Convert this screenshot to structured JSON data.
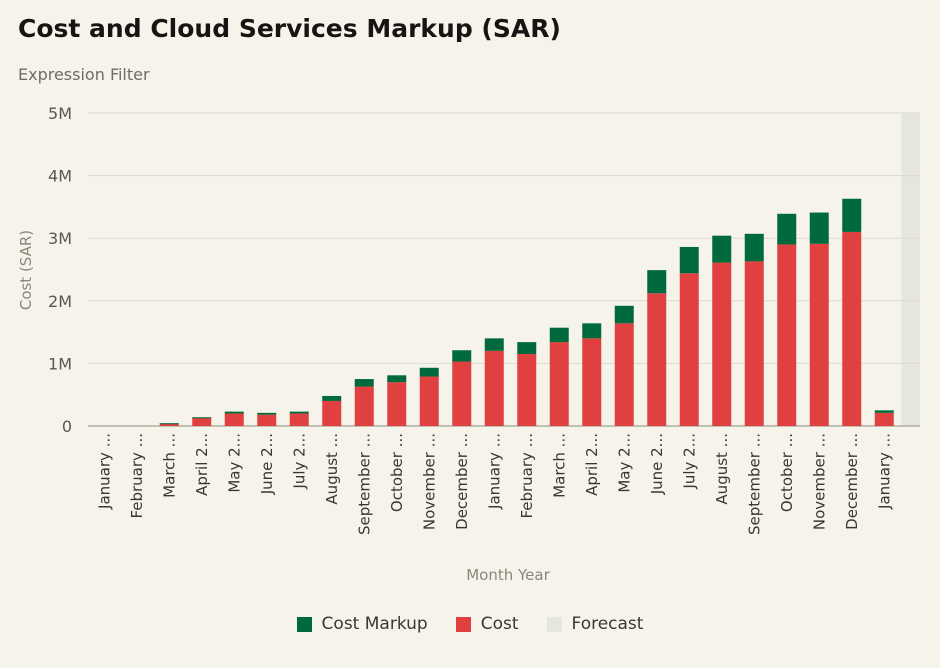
{
  "header": {
    "title": "Cost and Cloud Services Markup (SAR)",
    "subtitle": "Expression Filter"
  },
  "colors": {
    "cost": "#e04040",
    "markup": "#006a3c",
    "forecast": "#e6e6e0",
    "grid": "#dcdad0",
    "axis_text": "#5a5650"
  },
  "legend": {
    "markup_label": "Cost Markup",
    "cost_label": "Cost",
    "forecast_label": "Forecast"
  },
  "chart_data": {
    "type": "bar",
    "stacked": true,
    "title": "Cost and Cloud Services Markup (SAR)",
    "xlabel": "Month Year",
    "ylabel": "Cost (SAR)",
    "ylim": [
      0,
      5000000
    ],
    "yticks": [
      0,
      1000000,
      2000000,
      3000000,
      4000000,
      5000000
    ],
    "ytick_labels": [
      "0",
      "1M",
      "2M",
      "3M",
      "4M",
      "5M"
    ],
    "categories": [
      "January ...",
      "February ...",
      "March ...",
      "April 2...",
      "May 2...",
      "June 2...",
      "July 2...",
      "August ...",
      "September ...",
      "October ...",
      "November ...",
      "December ...",
      "January ...",
      "February ...",
      "March ...",
      "April 2...",
      "May 2...",
      "June 2...",
      "July 2...",
      "August ...",
      "September ...",
      "October ...",
      "November ...",
      "December ...",
      "January ..."
    ],
    "series": [
      {
        "name": "Cost",
        "values": [
          0,
          0,
          40000,
          130000,
          200000,
          180000,
          200000,
          400000,
          630000,
          700000,
          790000,
          1030000,
          1200000,
          1150000,
          1340000,
          1400000,
          1640000,
          2120000,
          2440000,
          2610000,
          2630000,
          2900000,
          2910000,
          3100000,
          210000
        ]
      },
      {
        "name": "Cost Markup",
        "values": [
          0,
          0,
          5000,
          10000,
          30000,
          30000,
          30000,
          80000,
          120000,
          110000,
          140000,
          180000,
          200000,
          190000,
          230000,
          240000,
          280000,
          370000,
          420000,
          430000,
          440000,
          490000,
          500000,
          530000,
          40000
        ]
      }
    ],
    "forecast_region": "after last category",
    "legend_position": "bottom-center"
  }
}
